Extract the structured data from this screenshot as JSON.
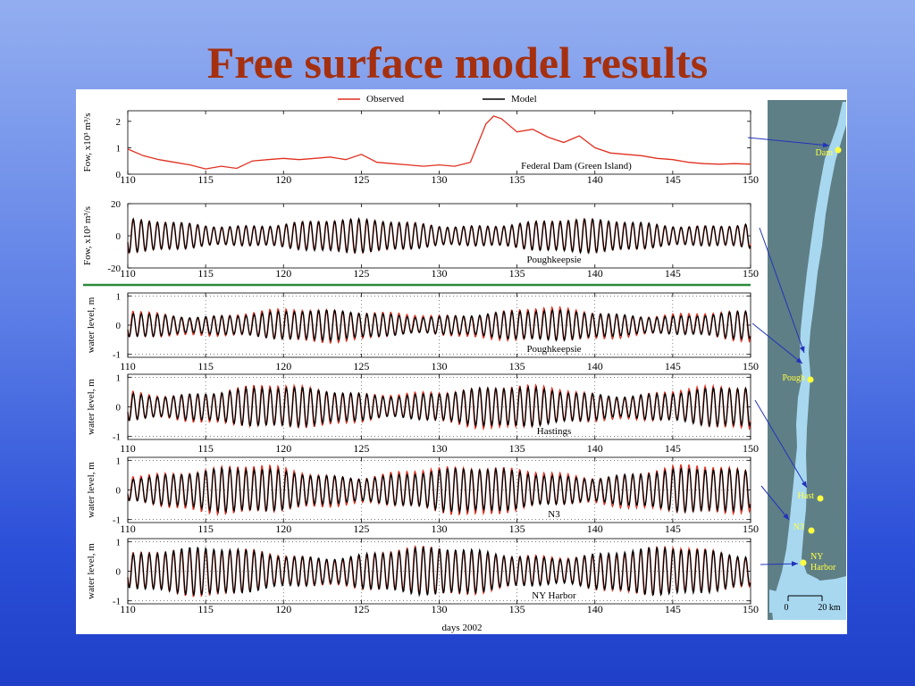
{
  "slide": {
    "title": "Free surface model results"
  },
  "legend": {
    "observed": "Observed",
    "model": "Model"
  },
  "colors": {
    "observed": "#e03020",
    "model": "#000000",
    "divider": "#2a8a3a",
    "title": "#a5300f",
    "map_water": "#a8d8f0",
    "map_land": "#5f7f86",
    "map_label": "#ffff40",
    "arrow": "#2233bb"
  },
  "chart_data": [
    {
      "type": "line",
      "station": "Federal Dam (Green Island)",
      "ylabel": "Fow, x10³ m³/s",
      "xlim": [
        110,
        150
      ],
      "ylim": [
        0,
        2.4
      ],
      "yticks": [
        "0",
        "1",
        "2"
      ],
      "ytick_values": [
        0,
        1,
        2
      ],
      "series": [
        {
          "name": "Observed",
          "x": [
            110,
            111,
            112,
            113,
            114,
            115,
            116,
            117,
            118,
            119,
            120,
            121,
            122,
            123,
            124,
            125,
            126,
            127,
            128,
            129,
            130,
            131,
            132,
            133,
            133.5,
            134,
            135,
            136,
            137,
            138,
            139,
            140,
            141,
            142,
            143,
            144,
            145,
            146,
            147,
            148,
            149,
            150
          ],
          "y": [
            0.95,
            0.7,
            0.55,
            0.45,
            0.35,
            0.2,
            0.3,
            0.22,
            0.5,
            0.55,
            0.6,
            0.55,
            0.6,
            0.65,
            0.55,
            0.75,
            0.45,
            0.4,
            0.35,
            0.3,
            0.35,
            0.3,
            0.45,
            1.9,
            2.2,
            2.1,
            1.6,
            1.7,
            1.4,
            1.2,
            1.45,
            1.0,
            0.8,
            0.75,
            0.7,
            0.6,
            0.55,
            0.45,
            0.4,
            0.38,
            0.4,
            0.38
          ]
        }
      ]
    },
    {
      "type": "line",
      "station": "Poughkeepsie",
      "ylabel": "Fow, x10³ m³/s",
      "xlim": [
        110,
        150
      ],
      "ylim": [
        -20,
        20
      ],
      "yticks": [
        "20",
        "0",
        "-20"
      ],
      "ytick_values": [
        20,
        0,
        -20
      ],
      "oscillation": {
        "period_days": 0.5175,
        "observed_amplitude": 10,
        "model_amplitude": 10
      },
      "series": [
        {
          "name": "Observed"
        },
        {
          "name": "Model"
        }
      ]
    },
    {
      "type": "line",
      "station": "Poughkeepsie",
      "ylabel": "water level, m",
      "xlim": [
        110,
        150
      ],
      "ylim": [
        -1.1,
        1.1
      ],
      "yticks": [
        "1",
        "0",
        "-1"
      ],
      "ytick_values": [
        1,
        0,
        -1
      ],
      "oscillation": {
        "period_days": 0.5175,
        "observed_amplitude": 0.55,
        "model_amplitude": 0.5
      },
      "series": [
        {
          "name": "Observed"
        },
        {
          "name": "Model"
        }
      ]
    },
    {
      "type": "line",
      "station": "Hastings",
      "ylabel": "water level, m",
      "xlim": [
        110,
        150
      ],
      "ylim": [
        -1.1,
        1.1
      ],
      "yticks": [
        "1",
        "0",
        "-1"
      ],
      "ytick_values": [
        1,
        0,
        -1
      ],
      "oscillation": {
        "period_days": 0.5175,
        "observed_amplitude": 0.7,
        "model_amplitude": 0.65
      },
      "series": [
        {
          "name": "Observed"
        },
        {
          "name": "Model"
        }
      ]
    },
    {
      "type": "line",
      "station": "N3",
      "ylabel": "water level, m",
      "xlim": [
        110,
        150
      ],
      "ylim": [
        -1.1,
        1.1
      ],
      "yticks": [
        "1",
        "0",
        "-1"
      ],
      "ytick_values": [
        1,
        0,
        -1
      ],
      "oscillation": {
        "period_days": 0.5175,
        "observed_amplitude": 0.8,
        "model_amplitude": 0.72
      },
      "series": [
        {
          "name": "Observed"
        },
        {
          "name": "Model"
        }
      ]
    },
    {
      "type": "line",
      "station": "NY Harbor",
      "ylabel": "water level, m",
      "xlim": [
        110,
        150
      ],
      "ylim": [
        -1.1,
        1.1
      ],
      "yticks": [
        "1",
        "0",
        "-1"
      ],
      "ytick_values": [
        1,
        0,
        -1
      ],
      "oscillation": {
        "period_days": 0.5175,
        "observed_amplitude": 0.78,
        "model_amplitude": 0.78
      },
      "series": [
        {
          "name": "Observed"
        },
        {
          "name": "Model"
        }
      ]
    }
  ],
  "xticks": [
    "110",
    "115",
    "120",
    "125",
    "130",
    "135",
    "140",
    "145",
    "150"
  ],
  "xtick_values": [
    110,
    115,
    120,
    125,
    130,
    135,
    140,
    145,
    150
  ],
  "xlabel": "days 2002",
  "map": {
    "stations": [
      {
        "id": "dam",
        "label": "Dam"
      },
      {
        "id": "pough",
        "label": "Pough"
      },
      {
        "id": "hast",
        "label": "Hast"
      },
      {
        "id": "n3",
        "label": "N3"
      },
      {
        "id": "nyh",
        "label": "NY\nHarbor"
      }
    ],
    "scale_start": "0",
    "scale_end": "20 km"
  }
}
